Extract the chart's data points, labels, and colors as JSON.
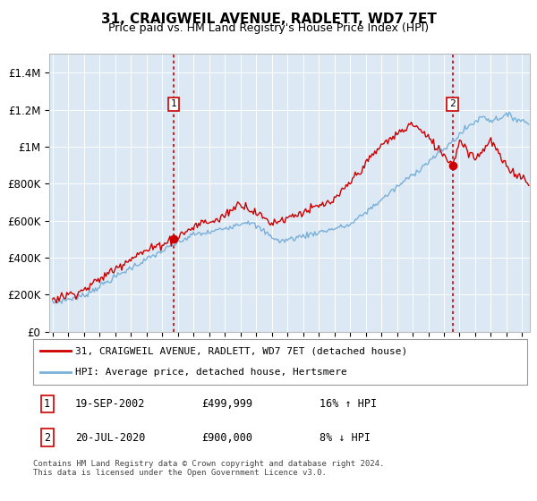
{
  "title": "31, CRAIGWEIL AVENUE, RADLETT, WD7 7ET",
  "subtitle": "Price paid vs. HM Land Registry's House Price Index (HPI)",
  "bg_color": "#dce9f5",
  "legend1": "31, CRAIGWEIL AVENUE, RADLETT, WD7 7ET (detached house)",
  "legend2": "HPI: Average price, detached house, Hertsmere",
  "annotation1_date": "19-SEP-2002",
  "annotation1_price": "£499,999",
  "annotation1_hpi": "16% ↑ HPI",
  "annotation2_date": "20-JUL-2020",
  "annotation2_price": "£900,000",
  "annotation2_hpi": "8% ↓ HPI",
  "footer": "Contains HM Land Registry data © Crown copyright and database right 2024.\nThis data is licensed under the Open Government Licence v3.0.",
  "sale1_year": 2002.72,
  "sale1_price": 499999,
  "sale2_year": 2020.55,
  "sale2_price": 900000,
  "hpi_line_color": "#7ab0d8",
  "price_line_color": "#cc0000",
  "dashed_line_color": "#cc0000",
  "ylim_min": 0,
  "ylim_max": 1500000,
  "xmin": 1994.8,
  "xmax": 2025.5,
  "yticks": [
    0,
    200000,
    400000,
    600000,
    800000,
    1000000,
    1200000,
    1400000
  ],
  "ylabels": [
    "£0",
    "£200K",
    "£400K",
    "£600K",
    "£800K",
    "£1M",
    "£1.2M",
    "£1.4M"
  ]
}
